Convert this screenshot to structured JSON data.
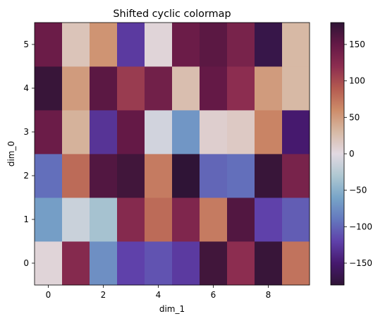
{
  "chart_data": {
    "type": "heatmap",
    "title": "Shifted cyclic colormap",
    "xlabel": "dim_1",
    "ylabel": "dim_0",
    "colormap": "twilight_shifted",
    "x": [
      0,
      1,
      2,
      3,
      4,
      5,
      6,
      7,
      8,
      9
    ],
    "y": [
      0,
      1,
      2,
      3,
      4,
      5
    ],
    "x_ticks": [
      "0",
      "2",
      "4",
      "6",
      "8"
    ],
    "y_ticks": [
      "0",
      "1",
      "2",
      "3",
      "4",
      "5"
    ],
    "colorbar": {
      "range": [
        -180,
        180
      ],
      "ticks": [
        "−150",
        "−100",
        "−50",
        "0",
        "50",
        "100",
        "150"
      ],
      "tick_values": [
        -150,
        -100,
        -50,
        0,
        50,
        100,
        150
      ]
    },
    "values": [
      [
        5,
        125,
        -75,
        -120,
        -110,
        -125,
        170,
        120,
        175,
        75
      ],
      [
        -65,
        -15,
        -35,
        125,
        80,
        130,
        70,
        160,
        -120,
        -105
      ],
      [
        -95,
        80,
        160,
        170,
        70,
        180,
        -100,
        -95,
        175,
        135
      ],
      [
        145,
        35,
        -130,
        150,
        -10,
        -70,
        10,
        15,
        65,
        -150
      ],
      [
        175,
        50,
        155,
        110,
        140,
        25,
        150,
        120,
        50,
        30
      ],
      [
        145,
        20,
        55,
        -125,
        5,
        145,
        155,
        135,
        -170,
        30
      ]
    ]
  }
}
